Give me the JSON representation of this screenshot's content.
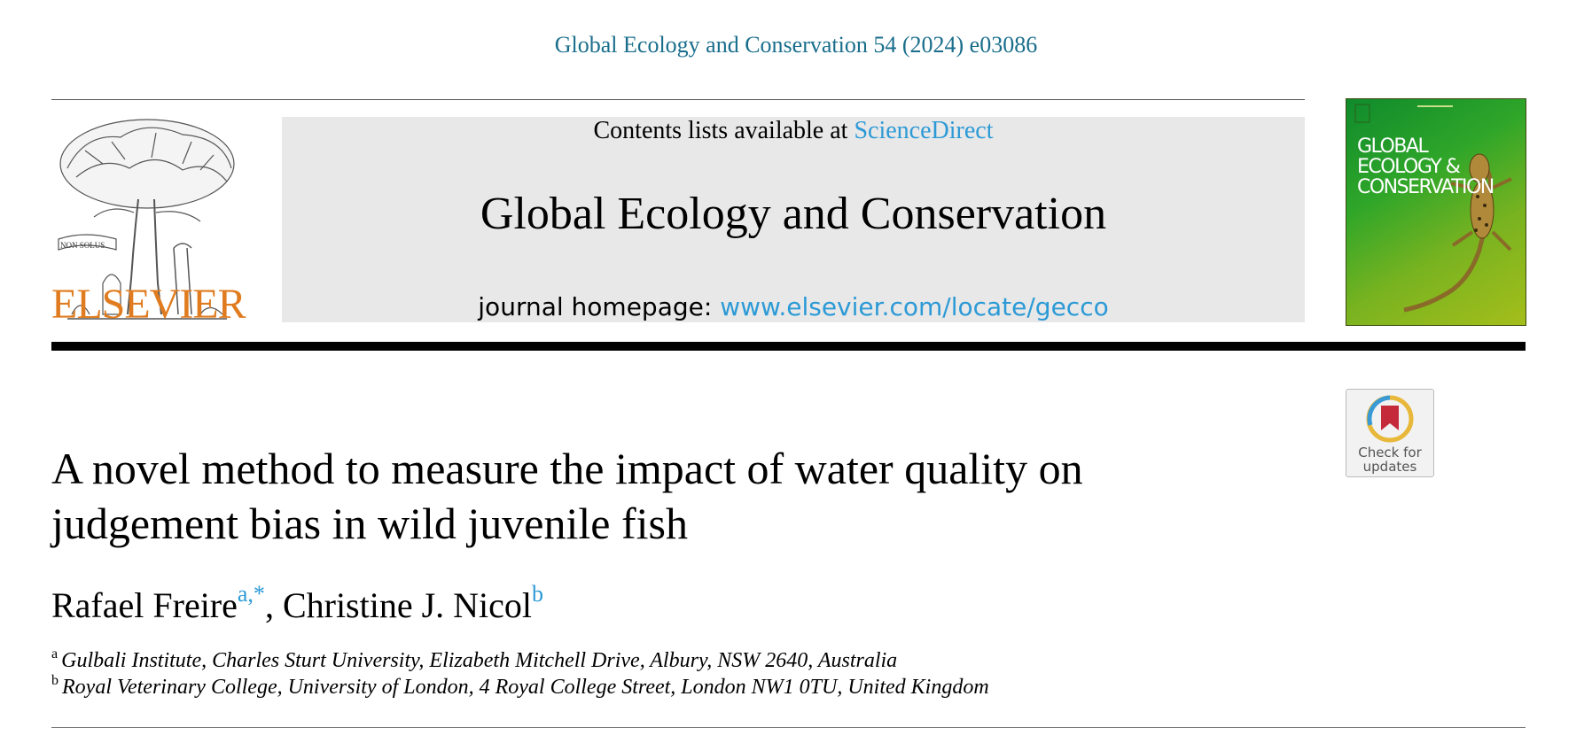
{
  "citation": "Global Ecology and Conservation 54 (2024) e03086",
  "publisher": {
    "name": "ELSEVIER",
    "logo_icon": "elsevier-tree-logo"
  },
  "banner": {
    "contents_prefix": "Contents lists available at ",
    "contents_link": "ScienceDirect",
    "journal_title": "Global Ecology and Conservation",
    "homepage_prefix": "journal homepage: ",
    "homepage_link": "www.elsevier.com/locate/gecco"
  },
  "cover": {
    "title_lines": [
      "GLOBAL",
      "ECOLOGY &",
      "CONSERVATION"
    ],
    "image_icon": "gecko-icon"
  },
  "check_updates": {
    "label_line1": "Check for",
    "label_line2": "updates",
    "icon": "bookmark-icon"
  },
  "article": {
    "title_line1": "A novel method to measure the impact of water quality on",
    "title_line2": "judgement bias in wild juvenile fish"
  },
  "authors": [
    {
      "name": "Rafael Freire",
      "sup": "a,*"
    },
    {
      "name": "Christine J. Nicol",
      "sup": "b"
    }
  ],
  "author_separator": ", ",
  "affiliations": [
    {
      "mark": "a",
      "text": "Gulbali Institute, Charles Sturt University, Elizabeth Mitchell Drive, Albury, NSW 2640, Australia"
    },
    {
      "mark": "b",
      "text": "Royal Veterinary College, University of London, 4 Royal College Street, London NW1 0TU, United Kingdom"
    }
  ],
  "colors": {
    "citation": "#1a6e8c",
    "link": "#2c9ad6",
    "elsevier_orange": "#e07c1f",
    "banner_bg": "#e8e8e8"
  }
}
